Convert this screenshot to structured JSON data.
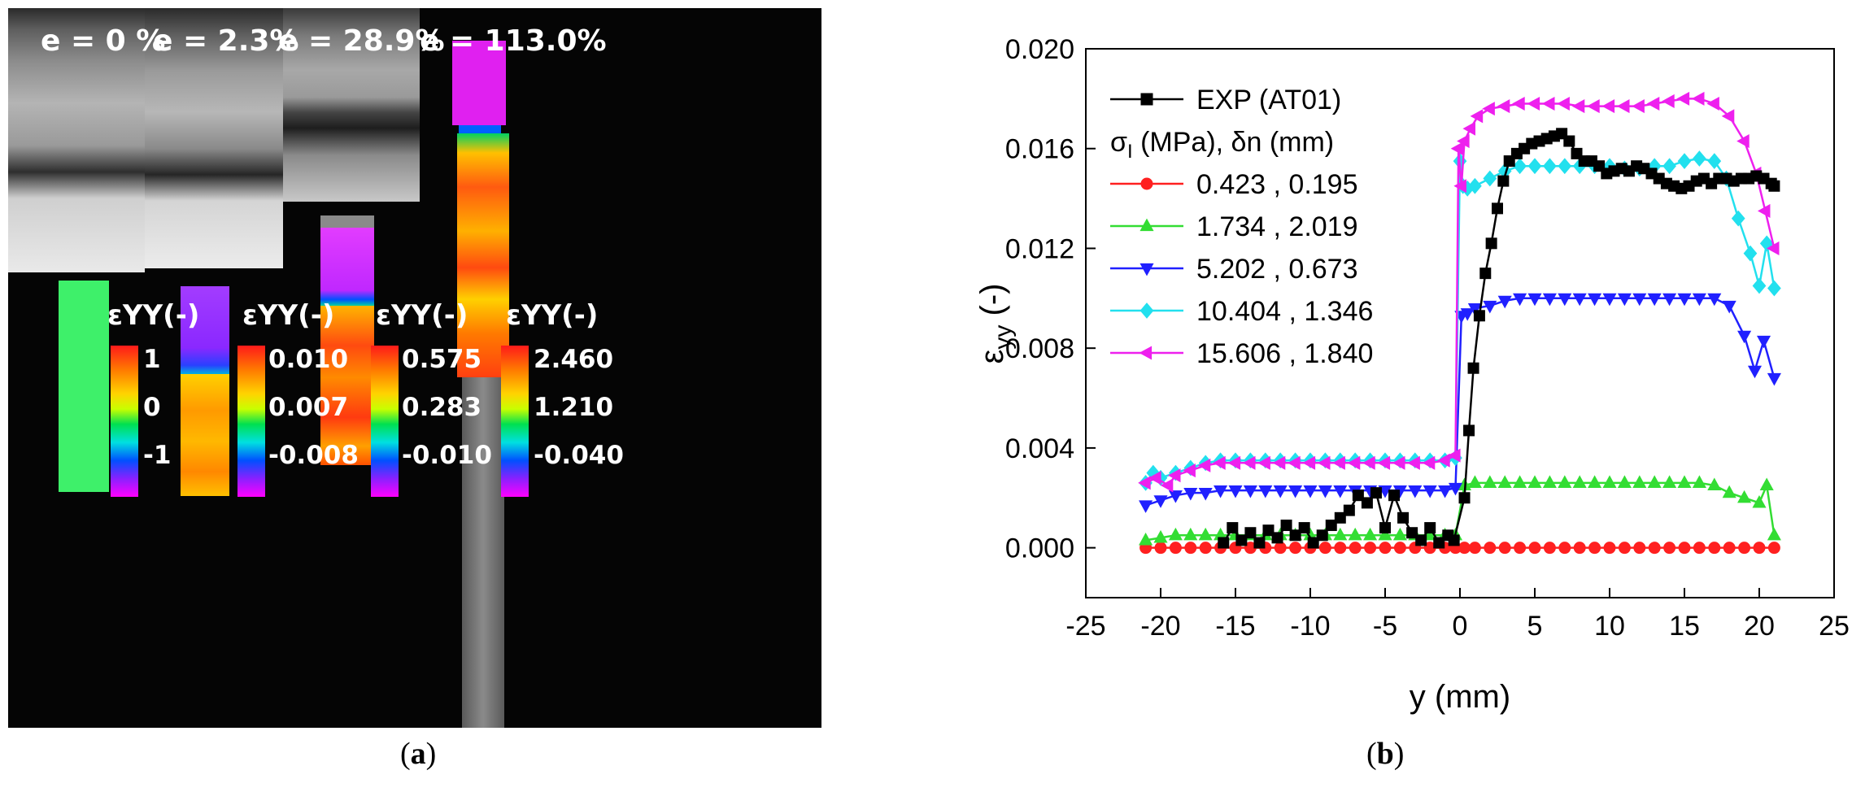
{
  "panel_a": {
    "strain_labels": [
      "e = 0 %",
      "e = 2.3%",
      "e = 28.9%",
      "e = 113.0%"
    ],
    "colorbar_title": "εYY(-)",
    "colorbars": [
      {
        "max": "1",
        "mid": "0",
        "min": "-1"
      },
      {
        "max": "0.010",
        "mid": "0.007",
        "min": "-0.008"
      },
      {
        "max": "0.575",
        "mid": "0.283",
        "min": "-0.010"
      },
      {
        "max": "2.460",
        "mid": "1.210",
        "min": "-0.040"
      }
    ],
    "caption": "a"
  },
  "panel_b": {
    "caption": "b"
  },
  "chart_data": {
    "type": "line",
    "xlabel": "y (mm)",
    "ylabel": "εyy (-)",
    "xlim": [
      -25,
      25
    ],
    "ylim": [
      -0.002,
      0.02
    ],
    "xticks": [
      -25,
      -20,
      -15,
      -10,
      -5,
      0,
      5,
      10,
      15,
      20,
      25
    ],
    "yticks": [
      0,
      0.004,
      0.008,
      0.012,
      0.016,
      0.02
    ],
    "ytick_labels": [
      "0.000",
      "0.004",
      "0.008",
      "0.012",
      "0.016",
      "0.020"
    ],
    "legend_header": "σI (MPa), δn (mm)",
    "series": [
      {
        "name": "EXP (AT01)",
        "color": "#000000",
        "marker": "square",
        "x": [
          -15.8,
          -15.2,
          -14.6,
          -14,
          -13.4,
          -12.8,
          -12.2,
          -11.6,
          -11,
          -10.4,
          -9.8,
          -9.2,
          -8.6,
          -8,
          -7.4,
          -6.8,
          -6.2,
          -5.6,
          -5,
          -4.4,
          -3.8,
          -3.2,
          -2.6,
          -2,
          -1.4,
          -0.8,
          -0.4,
          0.3,
          0.6,
          0.9,
          1.3,
          1.7,
          2.1,
          2.5,
          2.9,
          3.3,
          3.8,
          4.3,
          4.8,
          5.3,
          5.8,
          6.3,
          6.8,
          7.3,
          7.8,
          8.3,
          8.8,
          9.3,
          9.8,
          10.3,
          10.8,
          11.3,
          11.8,
          12.3,
          12.8,
          13.3,
          13.8,
          14.3,
          14.8,
          15.3,
          15.8,
          16.3,
          16.8,
          17.3,
          17.8,
          18.3,
          18.8,
          19.3,
          19.8,
          20.3,
          20.8,
          21
        ],
        "y": [
          0.0002,
          0.0008,
          0.0003,
          0.0006,
          0.0002,
          0.0007,
          0.0004,
          0.0009,
          0.0005,
          0.0008,
          0.0002,
          0.0005,
          0.0009,
          0.0012,
          0.0015,
          0.0021,
          0.0018,
          0.0022,
          0.0008,
          0.0021,
          0.0012,
          0.0006,
          0.0003,
          0.0008,
          0.0002,
          0.0005,
          0.0003,
          0.002,
          0.0047,
          0.0072,
          0.0093,
          0.011,
          0.0122,
          0.0136,
          0.0147,
          0.0155,
          0.0158,
          0.016,
          0.0162,
          0.0163,
          0.0164,
          0.0165,
          0.0166,
          0.0163,
          0.0158,
          0.0155,
          0.0155,
          0.0153,
          0.015,
          0.0151,
          0.0152,
          0.0151,
          0.0153,
          0.0152,
          0.015,
          0.0148,
          0.0146,
          0.0145,
          0.0144,
          0.0145,
          0.0147,
          0.0148,
          0.0146,
          0.0148,
          0.0148,
          0.0147,
          0.0148,
          0.0148,
          0.0149,
          0.0148,
          0.0146,
          0.0145
        ]
      },
      {
        "name": "0.423 , 0.195",
        "color": "#ff2020",
        "marker": "circle",
        "x": [
          -21,
          -20,
          -19,
          -18,
          -17,
          -16,
          -15,
          -14,
          -13,
          -12,
          -11,
          -10,
          -9,
          -8,
          -7,
          -6,
          -5,
          -4,
          -3,
          -2,
          -1,
          -0.3,
          0.3,
          1,
          2,
          3,
          4,
          5,
          6,
          7,
          8,
          9,
          10,
          11,
          12,
          13,
          14,
          15,
          16,
          17,
          18,
          19,
          20,
          21
        ],
        "y": [
          0,
          0,
          0,
          0,
          0,
          0,
          0,
          0,
          0,
          0,
          0,
          0,
          0,
          0,
          0,
          0,
          0,
          0,
          0,
          0,
          0,
          0,
          0,
          0,
          0,
          0,
          0,
          0,
          0,
          0,
          0,
          0,
          0,
          0,
          0,
          0,
          0,
          0,
          0,
          0,
          0,
          0,
          0,
          0
        ]
      },
      {
        "name": "1.734 , 2.019",
        "color": "#33dd33",
        "marker": "triangle-up",
        "x": [
          -21,
          -20,
          -19,
          -18,
          -17,
          -16,
          -15,
          -14,
          -13,
          -12,
          -11,
          -10,
          -9,
          -8,
          -7,
          -6,
          -5,
          -4,
          -3,
          -2,
          -1,
          -0.3,
          0.3,
          1,
          2,
          3,
          4,
          5,
          6,
          7,
          8,
          9,
          10,
          11,
          12,
          13,
          14,
          15,
          16,
          17,
          18,
          19,
          20,
          20.5,
          21
        ],
        "y": [
          0.0003,
          0.0004,
          0.0005,
          0.0005,
          0.0005,
          0.0005,
          0.0005,
          0.0005,
          0.0005,
          0.0005,
          0.0005,
          0.0005,
          0.0005,
          0.0005,
          0.0005,
          0.0005,
          0.0005,
          0.0005,
          0.0005,
          0.0005,
          0.0005,
          0.0005,
          0.0025,
          0.0026,
          0.0026,
          0.0026,
          0.0026,
          0.0026,
          0.0026,
          0.0026,
          0.0026,
          0.0026,
          0.0026,
          0.0026,
          0.0026,
          0.0026,
          0.0026,
          0.0026,
          0.0026,
          0.0025,
          0.0022,
          0.002,
          0.0018,
          0.0025,
          0.0005
        ]
      },
      {
        "name": "5.202 , 0.673",
        "color": "#2020ff",
        "marker": "triangle-down",
        "x": [
          -21,
          -20,
          -19,
          -18,
          -17,
          -16,
          -15,
          -14,
          -13,
          -12,
          -11,
          -10,
          -9,
          -8,
          -7,
          -6,
          -5,
          -4,
          -3,
          -2,
          -1,
          -0.3,
          0.1,
          0.5,
          1,
          2,
          3,
          4,
          5,
          6,
          7,
          8,
          9,
          10,
          11,
          12,
          13,
          14,
          15,
          16,
          17,
          18,
          19,
          19.7,
          20.3,
          21
        ],
        "y": [
          0.0017,
          0.0019,
          0.0021,
          0.0022,
          0.0022,
          0.0023,
          0.0023,
          0.0023,
          0.0023,
          0.0023,
          0.0023,
          0.0023,
          0.0023,
          0.0023,
          0.0023,
          0.0023,
          0.0023,
          0.0023,
          0.0023,
          0.0023,
          0.0023,
          0.0024,
          0.0093,
          0.0094,
          0.0096,
          0.0097,
          0.0099,
          0.01,
          0.01,
          0.01,
          0.01,
          0.01,
          0.01,
          0.01,
          0.01,
          0.01,
          0.01,
          0.01,
          0.01,
          0.01,
          0.01,
          0.0097,
          0.0085,
          0.0071,
          0.0083,
          0.0068
        ]
      },
      {
        "name": "10.404 , 1.346",
        "color": "#22e0ee",
        "marker": "diamond",
        "x": [
          -21,
          -20.5,
          -20,
          -19,
          -18,
          -17,
          -16,
          -15,
          -14,
          -13,
          -12,
          -11,
          -10,
          -9,
          -8,
          -7,
          -6,
          -5,
          -4,
          -3,
          -2,
          -1,
          -0.3,
          0,
          0.2,
          0.5,
          1,
          2,
          3,
          4,
          5,
          6,
          7,
          8,
          9,
          10,
          11,
          12,
          13,
          14,
          15,
          16,
          17,
          17.8,
          18.6,
          19.4,
          20,
          20.5,
          21
        ],
        "y": [
          0.0026,
          0.003,
          0.0028,
          0.003,
          0.0032,
          0.0034,
          0.0035,
          0.0035,
          0.0035,
          0.0035,
          0.0035,
          0.0035,
          0.0035,
          0.0035,
          0.0035,
          0.0035,
          0.0035,
          0.0035,
          0.0035,
          0.0035,
          0.0035,
          0.0035,
          0.0036,
          0.0155,
          0.0145,
          0.0144,
          0.0145,
          0.0148,
          0.0151,
          0.0153,
          0.0153,
          0.0153,
          0.0153,
          0.0153,
          0.0153,
          0.0153,
          0.0152,
          0.0152,
          0.0153,
          0.0153,
          0.0155,
          0.0156,
          0.0155,
          0.0148,
          0.0132,
          0.0118,
          0.0105,
          0.0122,
          0.0104
        ]
      },
      {
        "name": "15.606 , 1.840",
        "color": "#ee20ee",
        "marker": "triangle-left",
        "x": [
          -21,
          -20.3,
          -19.5,
          -19,
          -18,
          -17,
          -16,
          -15,
          -14,
          -13,
          -12,
          -11,
          -10,
          -9,
          -8,
          -7,
          -6,
          -5,
          -4,
          -3,
          -2,
          -1,
          -0.3,
          -0.1,
          0.1,
          0.3,
          0.7,
          1.2,
          2,
          3,
          4,
          5,
          6,
          7,
          8,
          9,
          10,
          11,
          12,
          13,
          14,
          15,
          16,
          17,
          18,
          19,
          19.8,
          20.4,
          21
        ],
        "y": [
          0.0026,
          0.0028,
          0.0025,
          0.0029,
          0.0031,
          0.0033,
          0.0034,
          0.0034,
          0.0034,
          0.0034,
          0.0034,
          0.0034,
          0.0034,
          0.0034,
          0.0034,
          0.0034,
          0.0034,
          0.0034,
          0.0034,
          0.0034,
          0.0034,
          0.0035,
          0.0037,
          0.016,
          0.0145,
          0.0163,
          0.0168,
          0.0173,
          0.0176,
          0.0177,
          0.0178,
          0.0178,
          0.0178,
          0.0178,
          0.0177,
          0.0177,
          0.0177,
          0.0177,
          0.0177,
          0.0178,
          0.0179,
          0.018,
          0.018,
          0.0178,
          0.0173,
          0.0163,
          0.015,
          0.0135,
          0.012
        ]
      }
    ]
  }
}
